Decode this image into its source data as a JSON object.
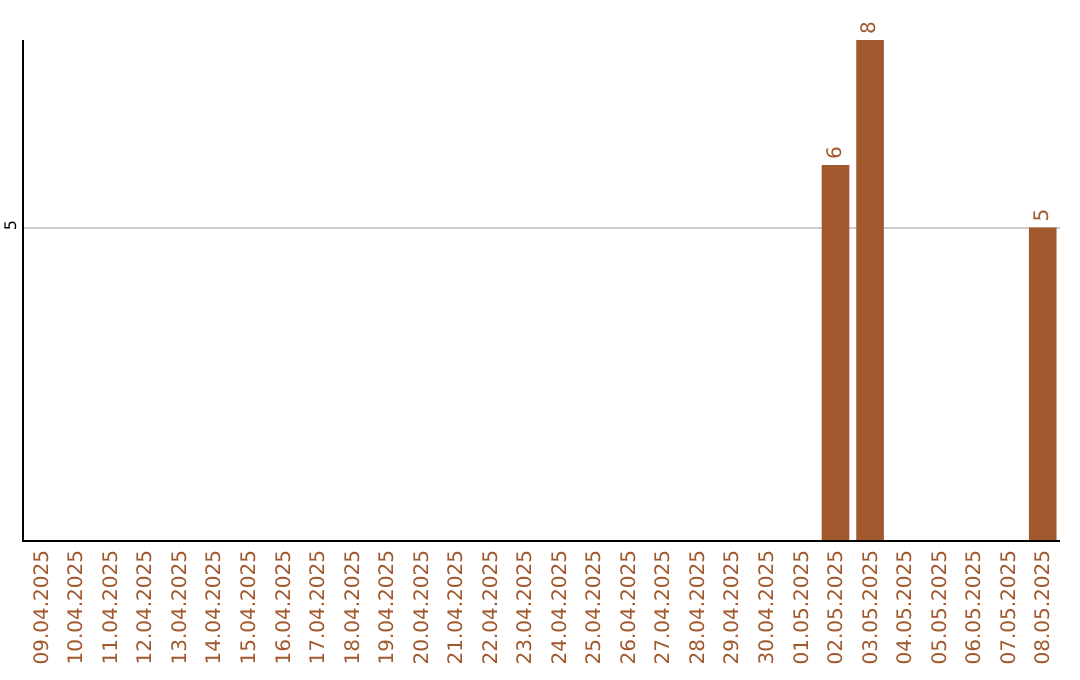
{
  "chart_data": {
    "type": "bar",
    "categories": [
      "09.04.2025",
      "10.04.2025",
      "11.04.2025",
      "12.04.2025",
      "13.04.2025",
      "14.04.2025",
      "15.04.2025",
      "16.04.2025",
      "17.04.2025",
      "18.04.2025",
      "19.04.2025",
      "20.04.2025",
      "21.04.2025",
      "22.04.2025",
      "23.04.2025",
      "24.04.2025",
      "25.04.2025",
      "26.04.2025",
      "27.04.2025",
      "28.04.2025",
      "29.04.2025",
      "30.04.2025",
      "01.05.2025",
      "02.05.2025",
      "03.05.2025",
      "04.05.2025",
      "05.05.2025",
      "06.05.2025",
      "07.05.2025",
      "08.05.2025"
    ],
    "values": [
      null,
      null,
      null,
      null,
      null,
      null,
      null,
      null,
      null,
      null,
      null,
      null,
      null,
      null,
      null,
      null,
      null,
      null,
      null,
      null,
      null,
      null,
      null,
      6,
      8,
      null,
      null,
      null,
      null,
      5
    ],
    "color": "#a0582c",
    "ylim": [
      0,
      8
    ],
    "yticks": [
      5
    ],
    "grid": "y",
    "data_labels": true
  }
}
